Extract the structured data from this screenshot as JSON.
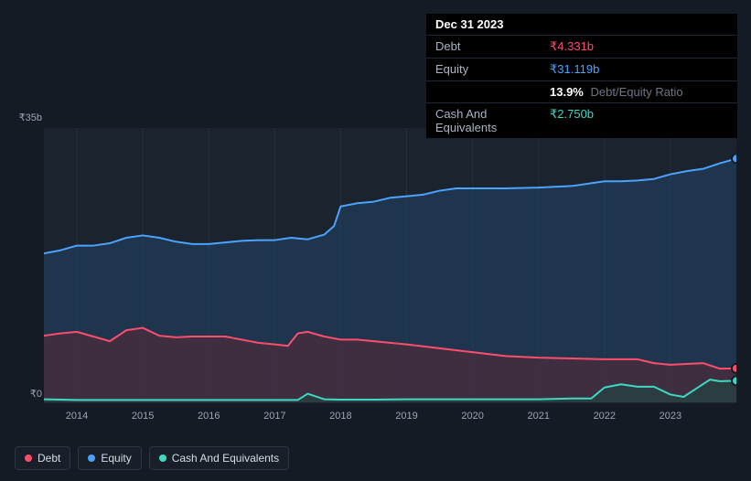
{
  "tooltip": {
    "date": "Dec 31 2023",
    "rows": [
      {
        "label": "Debt",
        "value": "₹4.331b",
        "color": "#ff4d6d"
      },
      {
        "label": "Equity",
        "value": "₹31.119b",
        "color": "#4aa3ff"
      },
      {
        "label": "",
        "value": "13.9%",
        "suffix": "Debt/Equity Ratio",
        "color": "#ffffff"
      },
      {
        "label": "Cash And Equivalents",
        "value": "₹2.750b",
        "color": "#3fd8c2"
      }
    ]
  },
  "chart": {
    "background": "#151b24",
    "plot_background": "#1b232e",
    "grid_color": "#243040",
    "axis_label_color": "#9aa5b4",
    "ylim": [
      0,
      35
    ],
    "yticks": [
      0,
      35
    ],
    "ytick_labels": [
      "₹0",
      "₹35b"
    ],
    "xlim": [
      2013.5,
      2024.0
    ],
    "xticks": [
      2014,
      2015,
      2016,
      2017,
      2018,
      2019,
      2020,
      2021,
      2022,
      2023
    ],
    "xtick_labels": [
      "2014",
      "2015",
      "2016",
      "2017",
      "2018",
      "2019",
      "2020",
      "2021",
      "2022",
      "2023"
    ],
    "series": {
      "equity": {
        "color": "#4aa3ff",
        "fill": "#234667",
        "fill_opacity": 0.55,
        "data": [
          [
            2013.5,
            19.0
          ],
          [
            2013.75,
            19.4
          ],
          [
            2014.0,
            20.0
          ],
          [
            2014.25,
            20.0
          ],
          [
            2014.5,
            20.3
          ],
          [
            2014.75,
            21.0
          ],
          [
            2015.0,
            21.3
          ],
          [
            2015.25,
            21.0
          ],
          [
            2015.5,
            20.5
          ],
          [
            2015.75,
            20.2
          ],
          [
            2016.0,
            20.2
          ],
          [
            2016.25,
            20.4
          ],
          [
            2016.5,
            20.6
          ],
          [
            2016.75,
            20.7
          ],
          [
            2017.0,
            20.7
          ],
          [
            2017.25,
            21.0
          ],
          [
            2017.5,
            20.8
          ],
          [
            2017.75,
            21.4
          ],
          [
            2017.9,
            22.5
          ],
          [
            2018.0,
            25.0
          ],
          [
            2018.25,
            25.4
          ],
          [
            2018.5,
            25.6
          ],
          [
            2018.75,
            26.1
          ],
          [
            2019.0,
            26.3
          ],
          [
            2019.25,
            26.5
          ],
          [
            2019.5,
            27.0
          ],
          [
            2019.75,
            27.3
          ],
          [
            2020.0,
            27.3
          ],
          [
            2020.5,
            27.3
          ],
          [
            2021.0,
            27.4
          ],
          [
            2021.5,
            27.6
          ],
          [
            2022.0,
            28.2
          ],
          [
            2022.25,
            28.2
          ],
          [
            2022.5,
            28.3
          ],
          [
            2022.75,
            28.5
          ],
          [
            2023.0,
            29.1
          ],
          [
            2023.25,
            29.5
          ],
          [
            2023.5,
            29.8
          ],
          [
            2023.75,
            30.5
          ],
          [
            2024.0,
            31.1
          ]
        ]
      },
      "debt": {
        "color": "#ff4d6d",
        "fill": "#5a2736",
        "fill_opacity": 0.55,
        "data": [
          [
            2013.5,
            8.5
          ],
          [
            2013.75,
            8.8
          ],
          [
            2014.0,
            9.0
          ],
          [
            2014.25,
            8.4
          ],
          [
            2014.5,
            7.8
          ],
          [
            2014.75,
            9.2
          ],
          [
            2015.0,
            9.5
          ],
          [
            2015.25,
            8.5
          ],
          [
            2015.5,
            8.3
          ],
          [
            2015.75,
            8.4
          ],
          [
            2016.0,
            8.4
          ],
          [
            2016.25,
            8.4
          ],
          [
            2016.5,
            8.0
          ],
          [
            2016.75,
            7.6
          ],
          [
            2017.0,
            7.4
          ],
          [
            2017.2,
            7.2
          ],
          [
            2017.35,
            8.8
          ],
          [
            2017.5,
            9.0
          ],
          [
            2017.75,
            8.4
          ],
          [
            2018.0,
            8.0
          ],
          [
            2018.25,
            8.0
          ],
          [
            2018.5,
            7.8
          ],
          [
            2018.75,
            7.6
          ],
          [
            2019.0,
            7.4
          ],
          [
            2019.5,
            6.9
          ],
          [
            2020.0,
            6.4
          ],
          [
            2020.5,
            5.9
          ],
          [
            2021.0,
            5.7
          ],
          [
            2021.5,
            5.6
          ],
          [
            2022.0,
            5.5
          ],
          [
            2022.5,
            5.5
          ],
          [
            2022.75,
            5.0
          ],
          [
            2023.0,
            4.8
          ],
          [
            2023.5,
            5.0
          ],
          [
            2023.75,
            4.3
          ],
          [
            2024.0,
            4.33
          ]
        ]
      },
      "cash": {
        "color": "#3fd8c2",
        "fill": "#1e4843",
        "fill_opacity": 0.6,
        "data": [
          [
            2013.5,
            0.4
          ],
          [
            2014.0,
            0.3
          ],
          [
            2014.5,
            0.3
          ],
          [
            2015.0,
            0.3
          ],
          [
            2015.5,
            0.3
          ],
          [
            2016.0,
            0.3
          ],
          [
            2016.5,
            0.3
          ],
          [
            2017.0,
            0.3
          ],
          [
            2017.35,
            0.3
          ],
          [
            2017.5,
            1.1
          ],
          [
            2017.75,
            0.4
          ],
          [
            2018.0,
            0.35
          ],
          [
            2018.5,
            0.35
          ],
          [
            2019.0,
            0.4
          ],
          [
            2019.5,
            0.4
          ],
          [
            2020.0,
            0.4
          ],
          [
            2020.5,
            0.4
          ],
          [
            2021.0,
            0.4
          ],
          [
            2021.5,
            0.5
          ],
          [
            2021.8,
            0.5
          ],
          [
            2022.0,
            1.9
          ],
          [
            2022.25,
            2.3
          ],
          [
            2022.5,
            2.0
          ],
          [
            2022.75,
            2.0
          ],
          [
            2023.0,
            1.0
          ],
          [
            2023.2,
            0.7
          ],
          [
            2023.4,
            1.8
          ],
          [
            2023.6,
            2.9
          ],
          [
            2023.75,
            2.7
          ],
          [
            2024.0,
            2.75
          ]
        ]
      }
    },
    "end_markers": [
      {
        "series": "equity",
        "x": 2024.0,
        "y": 31.1,
        "color": "#4aa3ff"
      },
      {
        "series": "debt",
        "x": 2024.0,
        "y": 4.33,
        "color": "#ff4d6d"
      },
      {
        "series": "cash",
        "x": 2024.0,
        "y": 2.75,
        "color": "#3fd8c2"
      }
    ]
  },
  "legend": [
    {
      "label": "Debt",
      "color": "#ff4d6d"
    },
    {
      "label": "Equity",
      "color": "#4aa3ff"
    },
    {
      "label": "Cash And Equivalents",
      "color": "#3fd8c2"
    }
  ]
}
